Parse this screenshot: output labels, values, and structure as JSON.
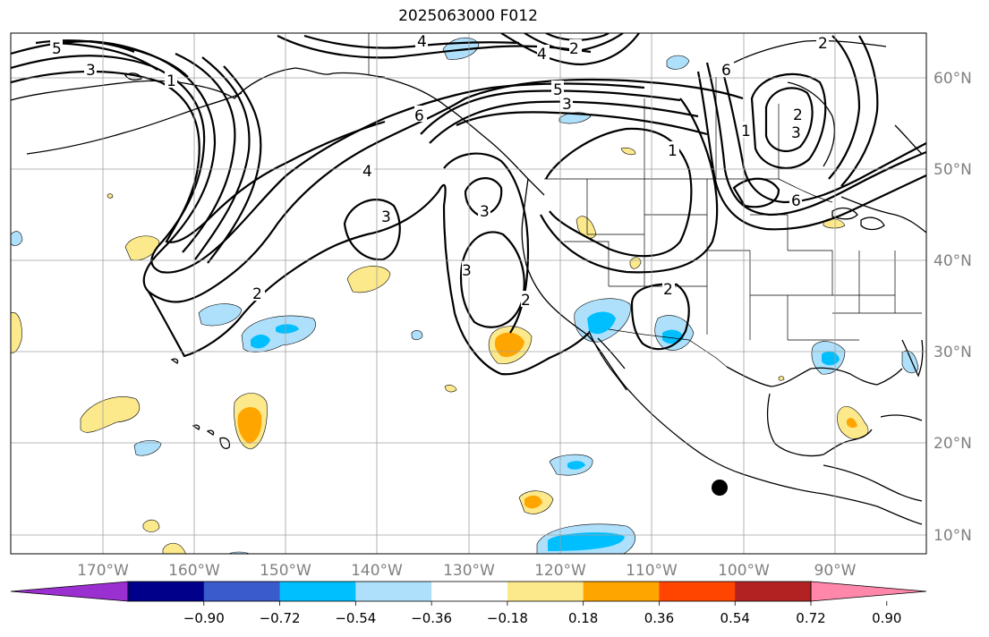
{
  "title": "2025063000 F012",
  "latitude_labels": [
    "60°N",
    "50°N",
    "40°N",
    "30°N",
    "20°N",
    "10°N"
  ],
  "longitude_labels": [
    "170°W",
    "160°W",
    "150°W",
    "140°W",
    "130°W",
    "120°W",
    "110°W",
    "100°W",
    "90°W"
  ],
  "colorbar": {
    "ticks": [
      "−0.90",
      "−0.72",
      "−0.54",
      "−0.36",
      "−0.18",
      "0.18",
      "0.36",
      "0.54",
      "0.72",
      "0.90"
    ],
    "colors": [
      "#9b30d0",
      "#00008b",
      "#3a5bcc",
      "#00bfff",
      "#aee0fb",
      "#ffffff",
      "#fce98b",
      "#ffa500",
      "#ff4500",
      "#b22222",
      "#ff88aa"
    ]
  },
  "contour_labels": [
    "5",
    "4",
    "3",
    "2",
    "1",
    "6",
    "5",
    "3",
    "2",
    "1",
    "4",
    "3",
    "3",
    "3",
    "2",
    "2",
    "2",
    "4",
    "6",
    "3",
    "2",
    "1",
    "6"
  ],
  "colors": {
    "contour": "#000000",
    "coastline": "#000000",
    "gridline": "#a0a0a0",
    "marker": "#000000"
  }
}
